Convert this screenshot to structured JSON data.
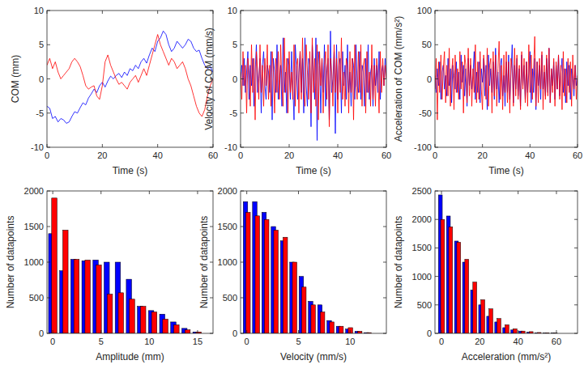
{
  "chart_data": [
    {
      "type": "line",
      "x_label": "Time (s)",
      "y_label": "COM (mm)",
      "xlim": [
        0,
        60
      ],
      "ylim": [
        -10,
        10
      ],
      "xticks": [
        0,
        20,
        40,
        60
      ],
      "yticks": [
        -10,
        -5,
        0,
        5,
        10
      ],
      "grid": false,
      "x": [
        0,
        1,
        2,
        3,
        4,
        5,
        6,
        7,
        8,
        9,
        10,
        11,
        12,
        13,
        14,
        15,
        16,
        17,
        18,
        19,
        20,
        21,
        22,
        23,
        24,
        25,
        26,
        27,
        28,
        29,
        30,
        31,
        32,
        33,
        34,
        35,
        36,
        37,
        38,
        39,
        40,
        41,
        42,
        43,
        44,
        45,
        46,
        47,
        48,
        49,
        50,
        51,
        52,
        53,
        54,
        55,
        56,
        57,
        58,
        59,
        60
      ],
      "series": [
        {
          "color": "#0000ff",
          "values": [
            -4,
            -4.3,
            -5.8,
            -5.5,
            -6.3,
            -5.8,
            -6,
            -6.5,
            -6.3,
            -5.5,
            -4.8,
            -5,
            -4.2,
            -3.5,
            -3.8,
            -2.8,
            -2.2,
            -1.5,
            -2,
            -1,
            -0.5,
            -1.2,
            -0.3,
            0.4,
            0,
            0.5,
            0.8,
            0.2,
            1,
            0.5,
            1.5,
            1.2,
            2,
            1.5,
            2.5,
            3,
            2.3,
            3.5,
            4.5,
            4,
            5.5,
            6,
            7,
            6.5,
            5,
            4,
            4.5,
            5.5,
            5,
            4.5,
            5,
            5.8,
            5.5,
            4.5,
            4,
            4.2,
            3,
            2,
            1.5,
            1.8,
            1
          ]
        },
        {
          "color": "#ff0000",
          "values": [
            2,
            3,
            1.5,
            2.5,
            1,
            0,
            0.5,
            1,
            1.5,
            2.5,
            3,
            2.5,
            1.8,
            0.5,
            -1,
            -1.5,
            -1.2,
            -1,
            -2.5,
            -3,
            -1,
            2.5,
            3.5,
            2,
            1,
            0,
            -0.8,
            -0.5,
            -1,
            -1.5,
            -0.5,
            0,
            0.5,
            -0.5,
            0.5,
            1.5,
            0.5,
            2,
            3.5,
            5,
            6.5,
            5,
            4,
            3,
            2,
            3,
            2.5,
            1.5,
            2,
            2.5,
            1.5,
            0,
            -1,
            -2.5,
            -4,
            -5,
            -5.5,
            -4.5,
            -2.5,
            -1,
            0
          ]
        }
      ]
    },
    {
      "type": "line",
      "x_label": "Time (s)",
      "y_label": "Velocity of COM (mm/s)",
      "xlim": [
        0,
        60
      ],
      "ylim": [
        -10,
        10
      ],
      "xticks": [
        0,
        20,
        40,
        60
      ],
      "yticks": [
        -10,
        -5,
        0,
        5,
        10
      ],
      "grid": false,
      "x": [
        0,
        0.5,
        1,
        1.5,
        2,
        2.5,
        3,
        3.5,
        4,
        4.5,
        5,
        5.5,
        6,
        6.5,
        7,
        7.5,
        8,
        8.5,
        9,
        9.5,
        10,
        10.5,
        11,
        11.5,
        12,
        12.5,
        13,
        13.5,
        14,
        14.5,
        15,
        15.5,
        16,
        16.5,
        17,
        17.5,
        18,
        18.5,
        19,
        19.5,
        20,
        20.5,
        21,
        21.5,
        22,
        22.5,
        23,
        23.5,
        24,
        24.5,
        25,
        25.5,
        26,
        26.5,
        27,
        27.5,
        28,
        28.5,
        29,
        29.5,
        30,
        30.5,
        31,
        31.5,
        32,
        32.5,
        33,
        33.5,
        34,
        34.5,
        35,
        35.5,
        36,
        36.5,
        37,
        37.5,
        38,
        38.5,
        39,
        39.5,
        40,
        40.5,
        41,
        41.5,
        42,
        42.5,
        43,
        43.5,
        44,
        44.5,
        45,
        45.5,
        46,
        46.5,
        47,
        47.5,
        48,
        48.5,
        49,
        49.5,
        50,
        50.5,
        51,
        51.5,
        52,
        52.5,
        53,
        53.5,
        54,
        54.5,
        55,
        55.5,
        56,
        56.5,
        57,
        57.5,
        58,
        58.5,
        59,
        59.5,
        60
      ],
      "series": [
        {
          "color": "#0000ff",
          "values": [
            0,
            2,
            -1,
            3,
            -2,
            1,
            4,
            -3,
            2,
            -1,
            3,
            -4,
            1,
            5,
            -2,
            0,
            3,
            -5,
            2,
            4,
            -1,
            -3,
            2,
            1,
            -2,
            4,
            -6,
            3,
            1,
            -2,
            5,
            -3,
            0,
            2,
            -4,
            6,
            -2,
            1,
            -5,
            3,
            2,
            -3,
            4,
            -1,
            -6,
            5,
            2,
            -3,
            1,
            4,
            -2,
            3,
            -5,
            6,
            -1,
            -4,
            3,
            2,
            -7,
            5,
            1,
            -3,
            6,
            -9,
            4,
            2,
            -5,
            3,
            -2,
            5,
            -4,
            1,
            3,
            -6,
            7,
            -2,
            0,
            4,
            -8,
            5,
            -3,
            2,
            3,
            -5,
            4,
            -1,
            2,
            -3,
            5,
            -2,
            1,
            -4,
            3,
            2,
            -3,
            5,
            -1,
            -2,
            4,
            -3,
            2,
            1,
            -4,
            3,
            -2,
            5,
            -3,
            1,
            2,
            -4,
            3,
            -1,
            2,
            -2,
            4,
            -3,
            1,
            2,
            -1,
            3,
            0
          ]
        },
        {
          "color": "#ff0000",
          "values": [
            1,
            -3,
            4,
            -1,
            2,
            -5,
            3,
            1,
            -4,
            5,
            -2,
            3,
            -6,
            4,
            1,
            -3,
            5,
            -2,
            2,
            -4,
            3,
            -1,
            5,
            -3,
            2,
            -4,
            4,
            1,
            -5,
            3,
            -2,
            4,
            -3,
            5,
            -1,
            -4,
            6,
            -2,
            3,
            -5,
            4,
            -2,
            1,
            -3,
            5,
            -4,
            2,
            3,
            -5,
            4,
            -3,
            6,
            -2,
            -4,
            5,
            1,
            -3,
            4,
            -5,
            6,
            -2,
            3,
            -4,
            5,
            -6,
            4,
            -1,
            3,
            -5,
            2,
            4,
            -3,
            5,
            -7,
            3,
            1,
            -4,
            5,
            -2,
            3,
            -5,
            4,
            -2,
            6,
            -3,
            1,
            -4,
            3,
            2,
            -5,
            4,
            -2,
            3,
            -6,
            5,
            -1,
            -3,
            4,
            -2,
            5,
            -4,
            2,
            3,
            -5,
            4,
            -2,
            1,
            -4,
            5,
            -3,
            2,
            -4,
            3,
            1,
            -5,
            4,
            -2,
            3,
            -1,
            2,
            0
          ]
        }
      ]
    },
    {
      "type": "line",
      "x_label": "Time (s)",
      "y_label": "Acceleration of COM (mm/s²)",
      "xlim": [
        0,
        60
      ],
      "ylim": [
        -100,
        100
      ],
      "xticks": [
        0,
        20,
        40,
        60
      ],
      "yticks": [
        -100,
        -50,
        0,
        50,
        100
      ],
      "grid": false,
      "x": [
        0,
        0.5,
        1,
        1.5,
        2,
        2.5,
        3,
        3.5,
        4,
        4.5,
        5,
        5.5,
        6,
        6.5,
        7,
        7.5,
        8,
        8.5,
        9,
        9.5,
        10,
        10.5,
        11,
        11.5,
        12,
        12.5,
        13,
        13.5,
        14,
        14.5,
        15,
        15.5,
        16,
        16.5,
        17,
        17.5,
        18,
        18.5,
        19,
        19.5,
        20,
        20.5,
        21,
        21.5,
        22,
        22.5,
        23,
        23.5,
        24,
        24.5,
        25,
        25.5,
        26,
        26.5,
        27,
        27.5,
        28,
        28.5,
        29,
        29.5,
        30,
        30.5,
        31,
        31.5,
        32,
        32.5,
        33,
        33.5,
        34,
        34.5,
        35,
        35.5,
        36,
        36.5,
        37,
        37.5,
        38,
        38.5,
        39,
        39.5,
        40,
        40.5,
        41,
        41.5,
        42,
        42.5,
        43,
        43.5,
        44,
        44.5,
        45,
        45.5,
        46,
        46.5,
        47,
        47.5,
        48,
        48.5,
        49,
        49.5,
        50,
        50.5,
        51,
        51.5,
        52,
        52.5,
        53,
        53.5,
        54,
        54.5,
        55,
        55.5,
        56,
        56.5,
        57,
        57.5,
        58,
        58.5,
        59,
        59.5,
        60
      ],
      "series": [
        {
          "color": "#0000ff",
          "values": [
            5,
            -20,
            15,
            -10,
            25,
            -30,
            10,
            20,
            -15,
            5,
            -25,
            30,
            -10,
            15,
            -35,
            20,
            5,
            -15,
            25,
            -20,
            10,
            -30,
            35,
            -5,
            20,
            -25,
            15,
            -40,
            30,
            -10,
            20,
            -15,
            5,
            40,
            -30,
            10,
            -20,
            25,
            -35,
            15,
            -5,
            30,
            -25,
            20,
            -45,
            35,
            -10,
            15,
            -20,
            25,
            -30,
            45,
            -15,
            10,
            -35,
            20,
            30,
            -25,
            5,
            -40,
            25,
            -20,
            35,
            -30,
            10,
            50,
            -35,
            20,
            -15,
            30,
            -25,
            15,
            -40,
            35,
            -10,
            20,
            -30,
            25,
            -20,
            10,
            40,
            -35,
            15,
            -20,
            30,
            -45,
            25,
            -10,
            20,
            -30,
            35,
            -15,
            10,
            -25,
            30,
            -20,
            45,
            -35,
            15,
            -10,
            25,
            -30,
            20,
            -15,
            35,
            -25,
            10,
            30,
            -20,
            15,
            -35,
            25,
            -10,
            20,
            -30,
            15,
            5,
            -25,
            20,
            -10,
            0
          ]
        },
        {
          "color": "#ff0000",
          "values": [
            -15,
            30,
            -60,
            25,
            -20,
            35,
            -30,
            15,
            40,
            -35,
            20,
            -25,
            45,
            -40,
            10,
            30,
            -45,
            35,
            -20,
            15,
            -30,
            40,
            -15,
            25,
            -50,
            35,
            20,
            -35,
            45,
            -25,
            30,
            -40,
            15,
            -20,
            50,
            -35,
            25,
            -30,
            40,
            -15,
            -45,
            35,
            10,
            -30,
            45,
            -40,
            20,
            30,
            -50,
            40,
            -25,
            35,
            -40,
            15,
            55,
            -30,
            20,
            -45,
            35,
            -20,
            40,
            -35,
            25,
            -50,
            30,
            15,
            -40,
            45,
            -25,
            35,
            -30,
            20,
            -45,
            40,
            -15,
            30,
            -35,
            25,
            -40,
            50,
            -20,
            35,
            -30,
            15,
            62,
            -40,
            25,
            -35,
            30,
            -15,
            40,
            -45,
            20,
            -30,
            35,
            -25,
            45,
            -35,
            15,
            -20,
            30,
            -40,
            25,
            -15,
            35,
            -30,
            20,
            -45,
            40,
            -25,
            15,
            -35,
            30,
            -20,
            25,
            -40,
            35,
            -15,
            20,
            -30,
            5
          ]
        }
      ]
    },
    {
      "type": "histogram",
      "x_label": "Amplitude (mm)",
      "y_label": "Number of datapoints",
      "xlim": [
        -0.6,
        16.6
      ],
      "ylim": [
        0,
        2000
      ],
      "xticks": [
        0,
        5,
        10,
        15
      ],
      "yticks": [
        0,
        500,
        1000,
        1500,
        2000
      ],
      "grid": false,
      "bins": [
        -0.575,
        0.575,
        1.725,
        2.875,
        4.025,
        5.175,
        6.325,
        7.475,
        8.625,
        9.775,
        10.925,
        12.075,
        13.225,
        14.375,
        15.525
      ],
      "series": [
        {
          "color": "#0000ff",
          "values": [
            1400,
            880,
            1040,
            1020,
            1030,
            1000,
            1000,
            760,
            380,
            320,
            270,
            160,
            70,
            20
          ]
        },
        {
          "color": "#ff0000",
          "values": [
            1900,
            1450,
            1040,
            1030,
            960,
            550,
            570,
            480,
            380,
            300,
            200,
            120,
            50,
            20
          ]
        }
      ]
    },
    {
      "type": "histogram",
      "x_label": "Velocity (mm/s)",
      "y_label": "Number of datapoints",
      "xlim": [
        -0.6,
        13.5
      ],
      "ylim": [
        0,
        2000
      ],
      "xticks": [
        0,
        5,
        10
      ],
      "yticks": [
        0,
        500,
        1000,
        1500,
        2000
      ],
      "grid": false,
      "bins": [
        -0.45,
        0.45,
        1.35,
        2.25,
        3.15,
        4.05,
        4.95,
        5.85,
        6.75,
        7.65,
        8.55,
        9.45,
        10.35,
        11.25,
        12.15
      ],
      "series": [
        {
          "color": "#0000ff",
          "values": [
            1850,
            1850,
            1700,
            1500,
            1300,
            1000,
            800,
            450,
            400,
            180,
            100,
            60,
            30,
            10
          ]
        },
        {
          "color": "#ff0000",
          "values": [
            1700,
            1650,
            1600,
            1450,
            1350,
            1000,
            650,
            400,
            300,
            160,
            100,
            80,
            30,
            10
          ]
        }
      ]
    },
    {
      "type": "histogram",
      "x_label": "Acceleration (mm/s²)",
      "y_label": "Number of datapoints",
      "xlim": [
        -3.4,
        71
      ],
      "ylim": [
        0,
        2500
      ],
      "xticks": [
        0,
        20,
        40,
        60
      ],
      "yticks": [
        0,
        500,
        1000,
        1500,
        2000,
        2500
      ],
      "grid": false,
      "bins": [
        -2.1,
        2.1,
        6.3,
        10.5,
        14.7,
        18.9,
        23.1,
        27.3,
        31.5,
        35.7,
        39.9,
        44.1,
        48.3,
        52.5,
        56.7,
        60.9
      ],
      "series": [
        {
          "color": "#0000ff",
          "values": [
            2430,
            2060,
            1620,
            1250,
            760,
            500,
            300,
            200,
            100,
            60,
            40,
            20,
            10,
            5,
            5
          ]
        },
        {
          "color": "#ff0000",
          "values": [
            2000,
            1870,
            1600,
            1300,
            900,
            590,
            430,
            260,
            150,
            80,
            40,
            30,
            15,
            10,
            5
          ]
        }
      ]
    }
  ]
}
